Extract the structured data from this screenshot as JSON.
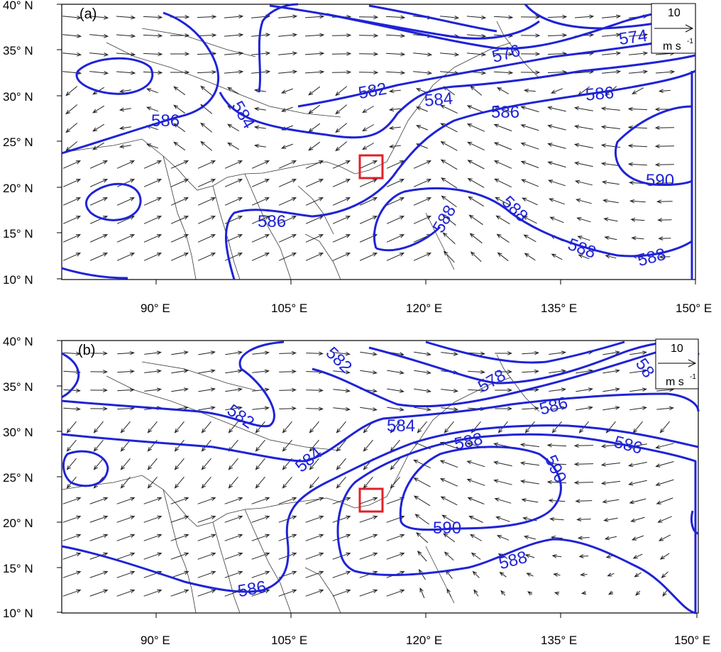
{
  "panels": [
    {
      "tag": "(a)",
      "lat_ticks": [
        "40° N",
        "35° N",
        "30° N",
        "25° N",
        "20° N",
        "15° N",
        "10° N"
      ],
      "lon_ticks": [
        "90° E",
        "105° E",
        "120° E",
        "135° E",
        "150° E"
      ],
      "reference_vector": {
        "magnitude": "10",
        "unit": "m s",
        "unit_exp": "-1"
      },
      "contour_labels": [
        "586",
        "584",
        "582",
        "576",
        "574",
        "584",
        "586",
        "586",
        "590",
        "588",
        "588",
        "588",
        "588",
        "586"
      ]
    },
    {
      "tag": "(b)",
      "lat_ticks": [
        "40° N",
        "35° N",
        "30° N",
        "25° N",
        "20° N",
        "15° N",
        "10° N"
      ],
      "lon_ticks": [
        "90° E",
        "105° E",
        "120° E",
        "135° E",
        "150° E"
      ],
      "reference_vector": {
        "magnitude": "10",
        "unit": "m s",
        "unit_exp": "-1"
      },
      "contour_labels": [
        "582",
        "582",
        "578",
        "584",
        "584",
        "586",
        "588",
        "586",
        "590",
        "590",
        "588",
        "586",
        "58"
      ]
    }
  ],
  "colors": {
    "contour": "#1f23d6",
    "box": "#e0202a",
    "land_border": "#3a3a3a"
  },
  "map_region": {
    "lon_range": [
      77,
      150
    ],
    "lat_range": [
      10,
      40
    ]
  }
}
